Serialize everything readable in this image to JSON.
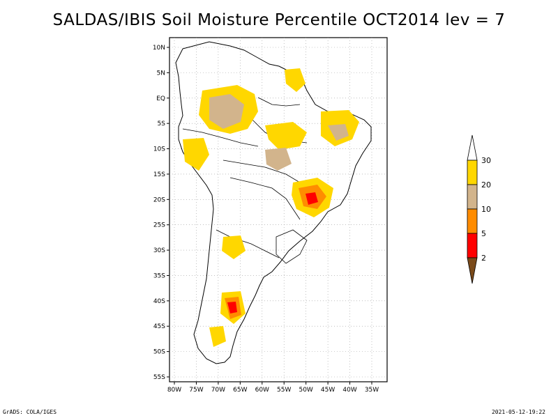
{
  "title": "SALDAS/IBIS Soil Moisture Percentile OCT2014 lev = 7",
  "axes": {
    "lat_labels": [
      "10N",
      "5N",
      "EQ",
      "5S",
      "10S",
      "15S",
      "20S",
      "25S",
      "30S",
      "35S",
      "40S",
      "45S",
      "50S",
      "55S"
    ],
    "lon_labels": [
      "80W",
      "75W",
      "70W",
      "65W",
      "60W",
      "55W",
      "50W",
      "45W",
      "40W",
      "35W"
    ]
  },
  "colorbar": {
    "labels": [
      "2",
      "5",
      "10",
      "20",
      "30"
    ],
    "colors": [
      "#7a4a1a",
      "#ff0000",
      "#ff8c00",
      "#d2b48c",
      "#ffd700",
      "#ffffff"
    ]
  },
  "footer": {
    "left": "GrADS: COLA/IGES",
    "right": "2021-05-12-19:22"
  }
}
